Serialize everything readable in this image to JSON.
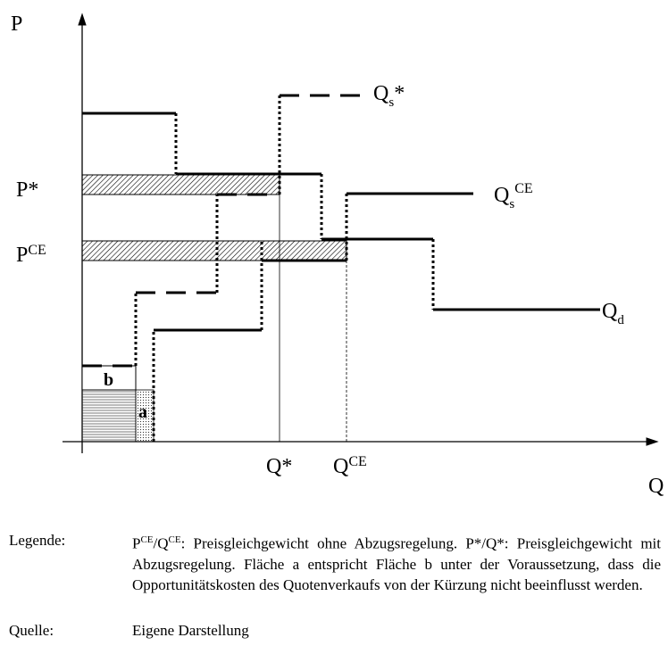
{
  "axes": {
    "y": "P",
    "x": "Q"
  },
  "price_labels": {
    "p_star": "P*",
    "p_ce": {
      "base": "P",
      "sup": "CE"
    }
  },
  "quantity_labels": {
    "q_star": "Q*",
    "q_ce": {
      "base": "Q",
      "sup": "CE"
    }
  },
  "curve_labels": {
    "qs_star": {
      "base": "Q",
      "sub": "s",
      "tail": "*"
    },
    "qs_ce": {
      "base": "Q",
      "sub": "s",
      "sup": "CE"
    },
    "qd": {
      "base": "Q",
      "sub": "d"
    }
  },
  "areas": {
    "a": "a",
    "b": "b"
  },
  "legend": {
    "label": "Legende:",
    "parts": [
      "P",
      "CE",
      "/Q",
      "CE",
      ": Preisgleichgewicht ohne Abzugsregelung. P*/Q*: Preisgleichgewicht mit Abzugsregelung. Fläche a entspricht Fläche b unter der Voraussetzung, dass die Opportunitätskosten des Quotenverkaufs von der Kürzung nicht beeinflusst werden."
    ]
  },
  "source": {
    "label": "Quelle:",
    "text": "Eigene Darstellung"
  }
}
